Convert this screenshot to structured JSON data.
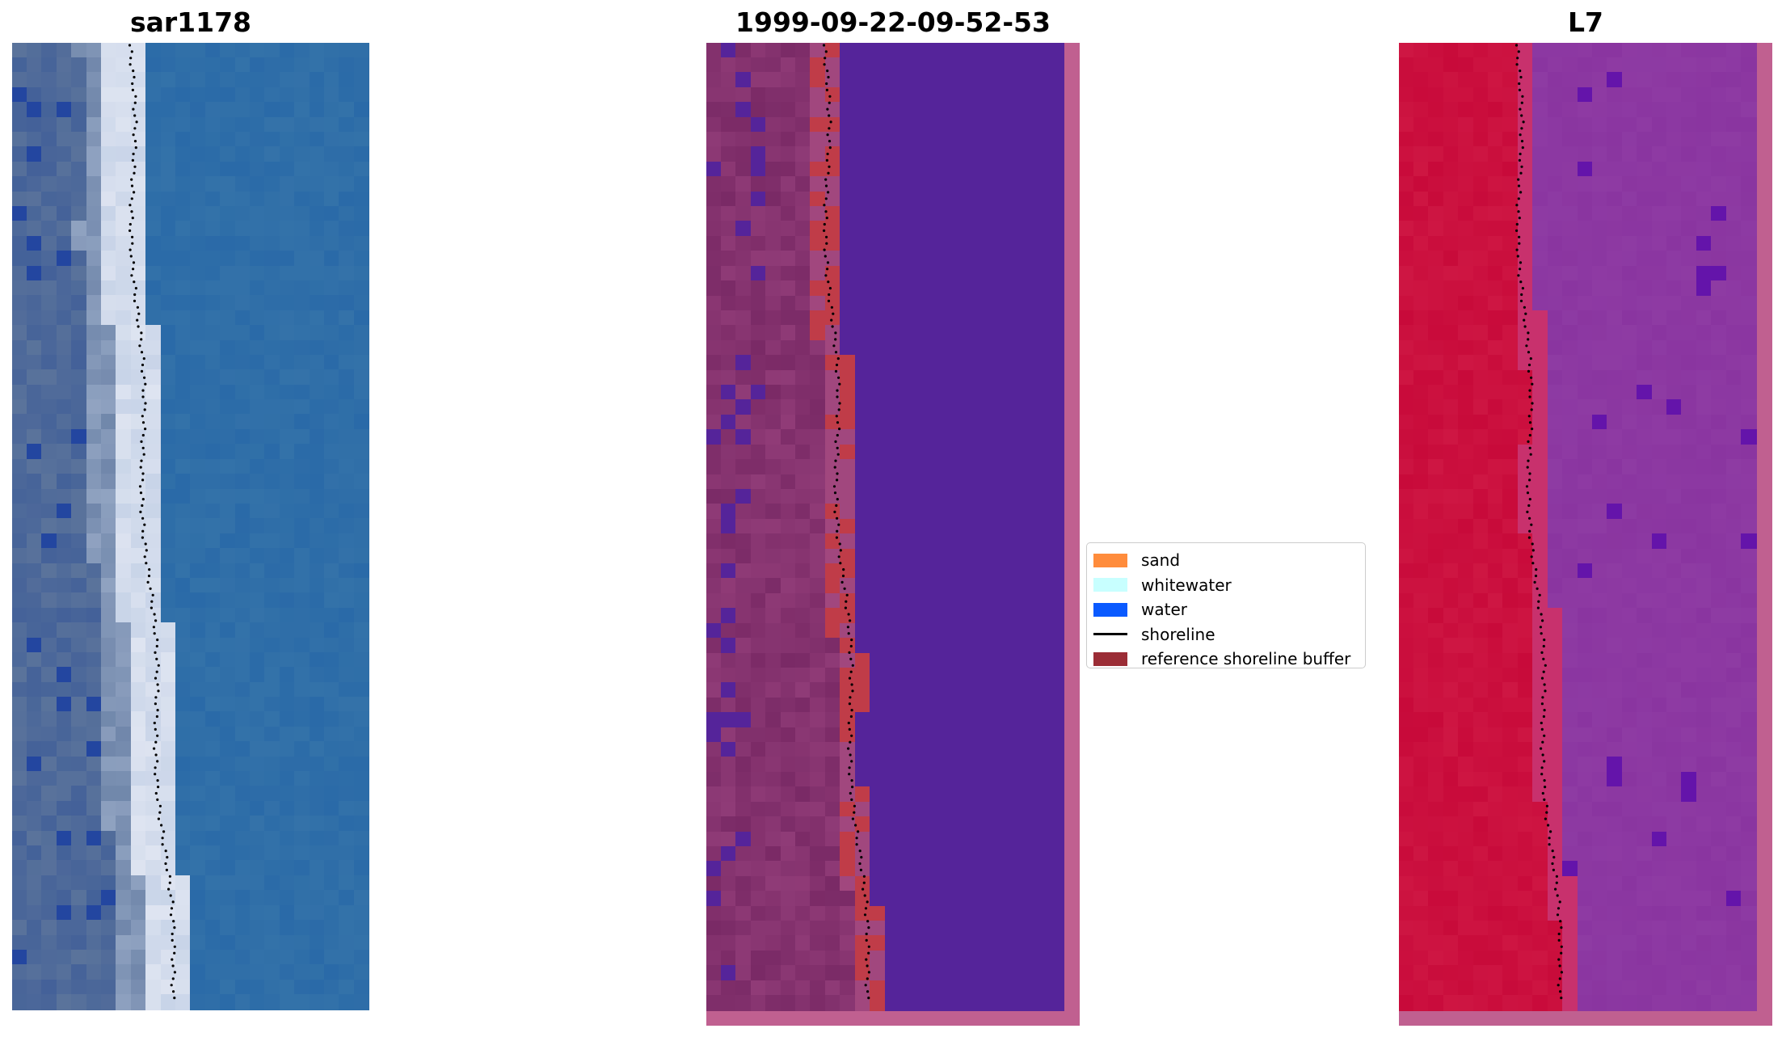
{
  "panels": [
    {
      "id": "rgb",
      "title": "sar1178"
    },
    {
      "id": "classified",
      "title": "1999-09-22-09-52-53"
    },
    {
      "id": "index",
      "title": "L7"
    }
  ],
  "legend": {
    "items": [
      {
        "label": "sand",
        "kind": "patch",
        "color": "#ff8c3c"
      },
      {
        "label": "whitewater",
        "kind": "patch",
        "color": "#c8ffff"
      },
      {
        "label": "water",
        "kind": "patch",
        "color": "#0a5aff"
      },
      {
        "label": "shoreline",
        "kind": "line",
        "color": "#000000"
      },
      {
        "label": "reference shoreline buffer",
        "kind": "patch",
        "color": "#9b2d36"
      }
    ]
  },
  "colors": {
    "water_rgb": "#2a6aa8",
    "sand_rgb": "#c8d4e8",
    "classified_water": "#55249a",
    "classified_buffer": "#c03c48",
    "classified_land": "#7a2a66",
    "classified_frame": "#c06090",
    "index_land": "#c80a3a",
    "index_water": "#8a35a0"
  }
}
